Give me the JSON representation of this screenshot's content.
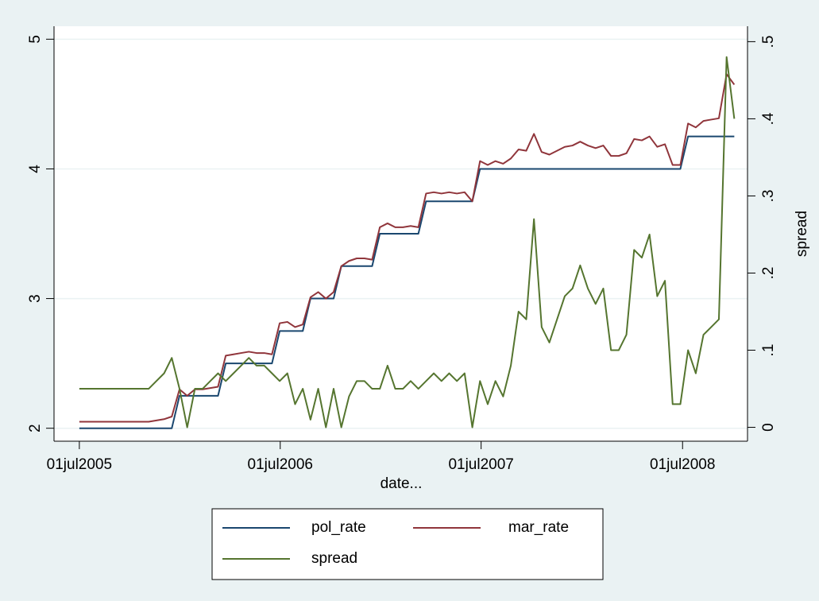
{
  "chart_data": {
    "type": "line",
    "x_label": "date...",
    "y2_label": "spread",
    "x": [
      "2005-07-01",
      "2005-07-15",
      "2005-07-29",
      "2005-08-12",
      "2005-08-26",
      "2005-09-09",
      "2005-09-23",
      "2005-10-07",
      "2005-10-21",
      "2005-11-04",
      "2005-11-18",
      "2005-12-02",
      "2005-12-16",
      "2005-12-30",
      "2006-01-13",
      "2006-01-27",
      "2006-02-10",
      "2006-02-24",
      "2006-03-10",
      "2006-03-24",
      "2006-04-07",
      "2006-04-21",
      "2006-05-05",
      "2006-05-19",
      "2006-06-02",
      "2006-06-16",
      "2006-06-30",
      "2006-07-14",
      "2006-07-28",
      "2006-08-11",
      "2006-08-25",
      "2006-09-08",
      "2006-09-22",
      "2006-10-06",
      "2006-10-20",
      "2006-11-03",
      "2006-11-17",
      "2006-12-01",
      "2006-12-15",
      "2006-12-29",
      "2007-01-12",
      "2007-01-26",
      "2007-02-09",
      "2007-02-23",
      "2007-03-09",
      "2007-03-23",
      "2007-04-06",
      "2007-04-20",
      "2007-05-04",
      "2007-05-18",
      "2007-06-01",
      "2007-06-15",
      "2007-06-29",
      "2007-07-13",
      "2007-07-27",
      "2007-08-10",
      "2007-08-24",
      "2007-09-07",
      "2007-09-21",
      "2007-10-05",
      "2007-10-19",
      "2007-11-02",
      "2007-11-16",
      "2007-11-30",
      "2007-12-14",
      "2007-12-28",
      "2008-01-11",
      "2008-01-25",
      "2008-02-08",
      "2008-02-22",
      "2008-03-07",
      "2008-03-21",
      "2008-04-04",
      "2008-04-18",
      "2008-05-02",
      "2008-05-16",
      "2008-05-30",
      "2008-06-13",
      "2008-06-27",
      "2008-07-11",
      "2008-07-25",
      "2008-08-08",
      "2008-08-22",
      "2008-09-05",
      "2008-09-19",
      "2008-10-03"
    ],
    "series": [
      {
        "name": "pol_rate",
        "color": "#1a476f",
        "axis": "y",
        "values": [
          2,
          2,
          2,
          2,
          2,
          2,
          2,
          2,
          2,
          2,
          2,
          2,
          2,
          2.25,
          2.25,
          2.25,
          2.25,
          2.25,
          2.25,
          2.5,
          2.5,
          2.5,
          2.5,
          2.5,
          2.5,
          2.5,
          2.75,
          2.75,
          2.75,
          2.75,
          3,
          3,
          3,
          3,
          3.25,
          3.25,
          3.25,
          3.25,
          3.25,
          3.5,
          3.5,
          3.5,
          3.5,
          3.5,
          3.5,
          3.75,
          3.75,
          3.75,
          3.75,
          3.75,
          3.75,
          3.75,
          4,
          4,
          4,
          4,
          4,
          4,
          4,
          4,
          4,
          4,
          4,
          4,
          4,
          4,
          4,
          4,
          4,
          4,
          4,
          4,
          4,
          4,
          4,
          4,
          4,
          4,
          4,
          4.25,
          4.25,
          4.25,
          4.25,
          4.25,
          4.25,
          4.25
        ]
      },
      {
        "name": "mar_rate",
        "color": "#90353b",
        "axis": "y",
        "values": [
          2.05,
          2.05,
          2.05,
          2.05,
          2.05,
          2.05,
          2.05,
          2.05,
          2.05,
          2.05,
          2.06,
          2.07,
          2.09,
          2.3,
          2.25,
          2.3,
          2.3,
          2.31,
          2.32,
          2.56,
          2.57,
          2.58,
          2.59,
          2.58,
          2.58,
          2.57,
          2.81,
          2.82,
          2.78,
          2.8,
          3.01,
          3.05,
          3,
          3.05,
          3.25,
          3.29,
          3.31,
          3.31,
          3.3,
          3.55,
          3.58,
          3.55,
          3.55,
          3.56,
          3.55,
          3.81,
          3.82,
          3.81,
          3.82,
          3.81,
          3.82,
          3.75,
          4.06,
          4.03,
          4.06,
          4.04,
          4.08,
          4.15,
          4.14,
          4.27,
          4.13,
          4.11,
          4.14,
          4.17,
          4.18,
          4.21,
          4.18,
          4.16,
          4.18,
          4.1,
          4.1,
          4.12,
          4.23,
          4.22,
          4.25,
          4.17,
          4.19,
          4.03,
          4.03,
          4.35,
          4.32,
          4.37,
          4.38,
          4.39,
          4.73,
          4.65
        ]
      },
      {
        "name": "spread",
        "color": "#55752f",
        "axis": "y2",
        "values": [
          0.05,
          0.05,
          0.05,
          0.05,
          0.05,
          0.05,
          0.05,
          0.05,
          0.05,
          0.05,
          0.06,
          0.07,
          0.09,
          0.05,
          0,
          0.05,
          0.05,
          0.06,
          0.07,
          0.06,
          0.07,
          0.08,
          0.09,
          0.08,
          0.08,
          0.07,
          0.06,
          0.07,
          0.03,
          0.05,
          0.01,
          0.05,
          0,
          0.05,
          0,
          0.04,
          0.06,
          0.06,
          0.05,
          0.05,
          0.08,
          0.05,
          0.05,
          0.06,
          0.05,
          0.06,
          0.07,
          0.06,
          0.07,
          0.06,
          0.07,
          0,
          0.06,
          0.03,
          0.06,
          0.04,
          0.08,
          0.15,
          0.14,
          0.27,
          0.13,
          0.11,
          0.14,
          0.17,
          0.18,
          0.21,
          0.18,
          0.16,
          0.18,
          0.1,
          0.1,
          0.12,
          0.23,
          0.22,
          0.25,
          0.17,
          0.19,
          0.03,
          0.03,
          0.1,
          0.07,
          0.12,
          0.13,
          0.14,
          0.48,
          0.4
        ]
      }
    ],
    "xlim": [
      "2005-05-16",
      "2008-10-27"
    ],
    "xticks": [
      {
        "value": "2005-07-01",
        "label": "01jul2005"
      },
      {
        "value": "2006-07-01",
        "label": "01jul2006"
      },
      {
        "value": "2007-07-01",
        "label": "01jul2007"
      },
      {
        "value": "2008-07-01",
        "label": "01jul2008"
      }
    ],
    "ylim": [
      1.9,
      5.1
    ],
    "yticks": [
      2,
      3,
      4,
      5
    ],
    "y2lim": [
      -0.018,
      0.52
    ],
    "y2ticks": [
      0,
      {
        "value": 0.1,
        "label": ".1"
      },
      {
        "value": 0.2,
        "label": ".2"
      },
      {
        "value": 0.3,
        "label": ".3"
      },
      {
        "value": 0.4,
        "label": ".4"
      },
      {
        "value": 0.5,
        "label": ".5"
      }
    ],
    "grid": true,
    "legend": "bottom"
  }
}
